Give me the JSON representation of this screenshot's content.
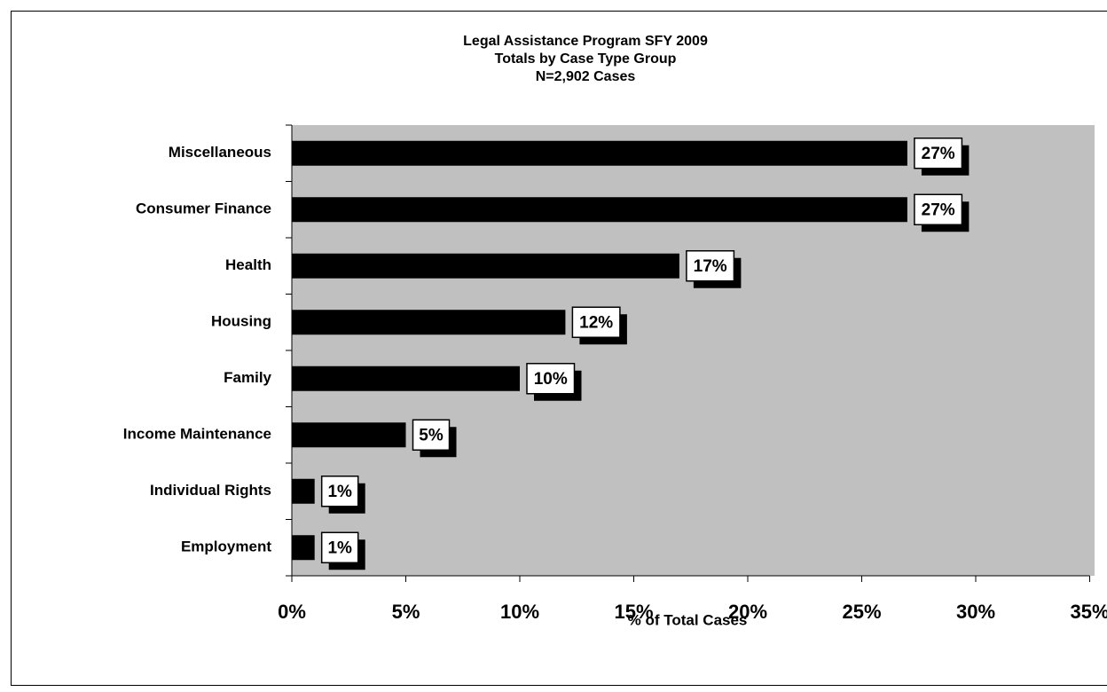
{
  "chart_data": {
    "type": "hbar",
    "title": [
      "Legal Assistance Program SFY 2009",
      "Totals by Case Type Group",
      "N=2,902 Cases"
    ],
    "xlabel": "% of Total Cases",
    "categories": [
      "Miscellaneous",
      "Consumer Finance",
      "Health",
      "Housing",
      "Family",
      "Income Maintenance",
      "Individual Rights",
      "Employment"
    ],
    "values": [
      27,
      27,
      17,
      12,
      10,
      5,
      1,
      1
    ],
    "value_labels": [
      "27%",
      "27%",
      "17%",
      "12%",
      "10%",
      "5%",
      "1%",
      "1%"
    ],
    "color": "#000000",
    "xlim": [
      0,
      35
    ],
    "xticks": [
      {
        "value": 0,
        "label": "0%"
      },
      {
        "value": 5,
        "label": "5%"
      },
      {
        "value": 10,
        "label": "10%"
      },
      {
        "value": 15,
        "label": "15%"
      },
      {
        "value": 20,
        "label": "20%"
      },
      {
        "value": 25,
        "label": "25%"
      },
      {
        "value": 30,
        "label": "30%"
      },
      {
        "value": 35,
        "label": "35%"
      }
    ]
  }
}
